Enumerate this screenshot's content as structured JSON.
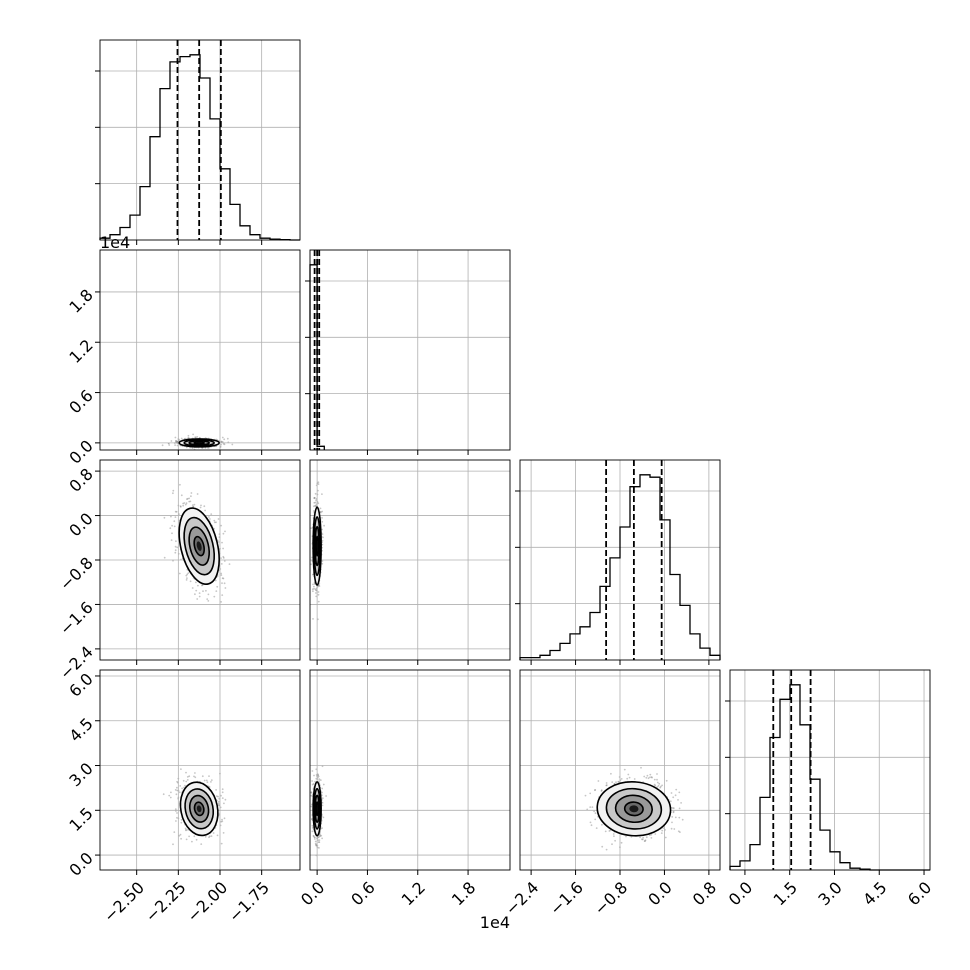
{
  "chart_data": {
    "type": "corner",
    "title": "",
    "n_params": 4,
    "params": [
      {
        "index": 0,
        "range": [
          -2.72,
          -1.52
        ],
        "ticks": [
          -2.5,
          -2.25,
          -2.0,
          -1.75
        ],
        "tick_labels": [
          "−2.50",
          "−2.25",
          "−2.00",
          "−1.75"
        ],
        "offset": ""
      },
      {
        "index": 1,
        "range": [
          -850,
          23000
        ],
        "ticks": [
          0,
          6000,
          12000,
          18000
        ],
        "tick_labels": [
          "0.0",
          "0.6",
          "1.2",
          "1.8"
        ],
        "offset": "1e4"
      },
      {
        "index": 2,
        "range": [
          -2.6,
          1.0
        ],
        "ticks": [
          -2.4,
          -1.6,
          -0.8,
          0.0,
          0.8
        ],
        "tick_labels": [
          "−2.4",
          "−1.6",
          "−0.8",
          "0.0",
          "0.8"
        ],
        "offset": ""
      },
      {
        "index": 3,
        "range": [
          -0.5,
          6.2
        ],
        "ticks": [
          0.0,
          1.5,
          3.0,
          4.5,
          6.0
        ],
        "tick_labels": [
          "0.0",
          "1.5",
          "3.0",
          "4.5",
          "6.0"
        ],
        "offset": ""
      }
    ],
    "quantiles": [
      [
        -2.255,
        -2.125,
        -1.995
      ],
      [
        -300,
        0,
        250
      ],
      [
        -1.05,
        -0.55,
        -0.05
      ],
      [
        0.95,
        1.55,
        2.2
      ]
    ],
    "histograms": [
      {
        "bins": [
          -2.72,
          -2.66,
          -2.6,
          -2.54,
          -2.48,
          -2.42,
          -2.36,
          -2.3,
          -2.24,
          -2.18,
          -2.12,
          -2.06,
          -2.0,
          -1.94,
          -1.88,
          -1.82,
          -1.76,
          -1.7,
          -1.64,
          -1.58,
          -1.52
        ],
        "counts": [
          1,
          3,
          7,
          14,
          30,
          58,
          85,
          100,
          103,
          104,
          91,
          68,
          40,
          20,
          8,
          3,
          1,
          0.5,
          0.2,
          0
        ]
      },
      {
        "bins": [
          -850,
          0,
          850
        ],
        "counts": [
          100,
          2
        ]
      },
      {
        "bins": [
          -2.6,
          -2.42,
          -2.24,
          -2.06,
          -1.88,
          -1.7,
          -1.52,
          -1.34,
          -1.16,
          -0.98,
          -0.8,
          -0.62,
          -0.44,
          -0.26,
          -0.08,
          0.1,
          0.28,
          0.46,
          0.64,
          0.82,
          1.0
        ],
        "counts": [
          1,
          1,
          2,
          4,
          7,
          11,
          14,
          20,
          31,
          43,
          56,
          73,
          78,
          77,
          59,
          36,
          23,
          11,
          5,
          2
        ]
      },
      {
        "bins": [
          -0.5,
          -0.165,
          0.17,
          0.505,
          0.84,
          1.175,
          1.51,
          1.845,
          2.18,
          2.515,
          2.85,
          3.185,
          3.52,
          3.855,
          4.19,
          4.525,
          4.86,
          5.195,
          5.53,
          5.865,
          6.2
        ],
        "counts": [
          2,
          5,
          14,
          40,
          73,
          94,
          102,
          80,
          50,
          22,
          10,
          4,
          1,
          0.5,
          0,
          0,
          0,
          0,
          0,
          0
        ]
      }
    ],
    "pairs": [
      {
        "x_param": 0,
        "y_param": 1,
        "center": [
          -2.125,
          0
        ],
        "spread": [
          0.06,
          150
        ],
        "corr": 0.0
      },
      {
        "x_param": 0,
        "y_param": 2,
        "center": [
          -2.125,
          -0.55
        ],
        "spread": [
          0.055,
          0.35
        ],
        "corr": -0.3
      },
      {
        "x_param": 0,
        "y_param": 3,
        "center": [
          -2.125,
          1.55
        ],
        "spread": [
          0.055,
          0.45
        ],
        "corr": -0.25
      },
      {
        "x_param": 1,
        "y_param": 2,
        "center": [
          0,
          -0.55
        ],
        "spread": [
          150,
          0.35
        ],
        "corr": 0.0
      },
      {
        "x_param": 1,
        "y_param": 3,
        "center": [
          0,
          1.55
        ],
        "spread": [
          150,
          0.45
        ],
        "corr": 0.0
      },
      {
        "x_param": 2,
        "y_param": 3,
        "center": [
          -0.55,
          1.55
        ],
        "spread": [
          0.33,
          0.45
        ],
        "corr": 0.1
      }
    ],
    "contour_levels_sigma": [
      0.5,
      1.0,
      1.5,
      2.0
    ],
    "grid": true,
    "colors": {
      "line": "#000000",
      "grid": "#b0b0b0",
      "scatter": "#808080"
    }
  }
}
